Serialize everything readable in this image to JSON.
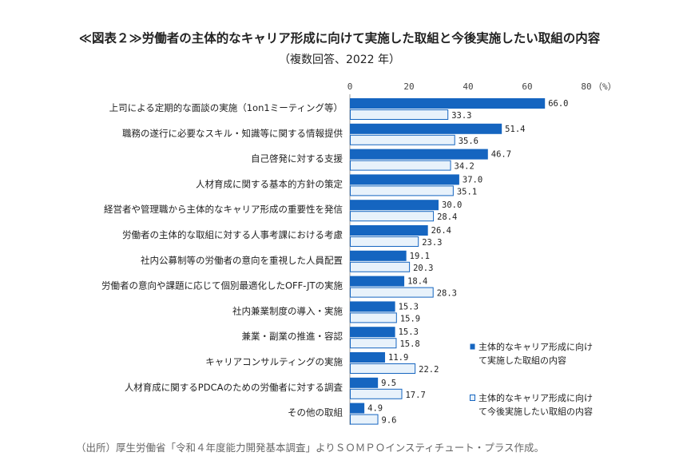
{
  "title": "≪図表２≫労働者の主体的なキャリア形成に向けて実施した取組と今後実施したい取組の内容",
  "subtitle": "（複数回答、2022 年）",
  "source": "（出所）厚生労働省「令和４年度能力開発基本調査」よりＳＯＭＰＯインスティチュート・プラス作成。",
  "colors": {
    "series1": "#1565c0",
    "series2": "#e8f2fb",
    "series2_border": "#1565c0"
  },
  "chart_data": {
    "type": "bar",
    "orientation": "horizontal",
    "xlim": [
      0,
      80
    ],
    "x_ticks": [
      "0",
      "20",
      "40",
      "60",
      "80"
    ],
    "x_unit": "（%）",
    "categories": [
      "上司による定期的な面談の実施（1on1ミーティング等）",
      "職務の遂行に必要なスキル・知識等に関する情報提供",
      "自己啓発に対する支援",
      "人材育成に関する基本的方針の策定",
      "経営者や管理職から主体的なキャリア形成の重要性を発信",
      "労働者の主体的な取組に対する人事考課における考慮",
      "社内公募制等の労働者の意向を重視した人員配置",
      "労働者の意向や課題に応じて個別最適化したOFF-JTの実施",
      "社内兼業制度の導入・実施",
      "兼業・副業の推進・容認",
      "キャリアコンサルティングの実施",
      "人材育成に関するPDCAのための労働者に対する調査",
      "その他の取組"
    ],
    "series": [
      {
        "name": "主体的なキャリア形成に向けて実施した取組の内容",
        "legend_lines": [
          "主体的なキャリア形成に向け",
          "て実施した取組の内容"
        ],
        "values": [
          66.0,
          51.4,
          46.7,
          37.0,
          30.0,
          26.4,
          19.1,
          18.4,
          15.3,
          15.3,
          11.9,
          9.5,
          4.9
        ],
        "labels": [
          "66.0",
          "51.4",
          "46.7",
          "37.0",
          "30.0",
          "26.4",
          "19.1",
          "18.4",
          "15.3",
          "15.3",
          "11.9",
          "9.5",
          "4.9"
        ]
      },
      {
        "name": "主体的なキャリア形成に向けて今後実施したい取組の内容",
        "legend_lines": [
          "主体的なキャリア形成に向け",
          "て今後実施したい取組の内容"
        ],
        "values": [
          33.3,
          35.6,
          34.2,
          35.1,
          28.4,
          23.3,
          20.3,
          28.3,
          15.9,
          15.8,
          22.2,
          17.7,
          9.6
        ],
        "labels": [
          "33.3",
          "35.6",
          "34.2",
          "35.1",
          "28.4",
          "23.3",
          "20.3",
          "28.3",
          "15.9",
          "15.8",
          "22.2",
          "17.7",
          "9.6"
        ]
      }
    ],
    "legend_position": "right",
    "grid": false
  }
}
